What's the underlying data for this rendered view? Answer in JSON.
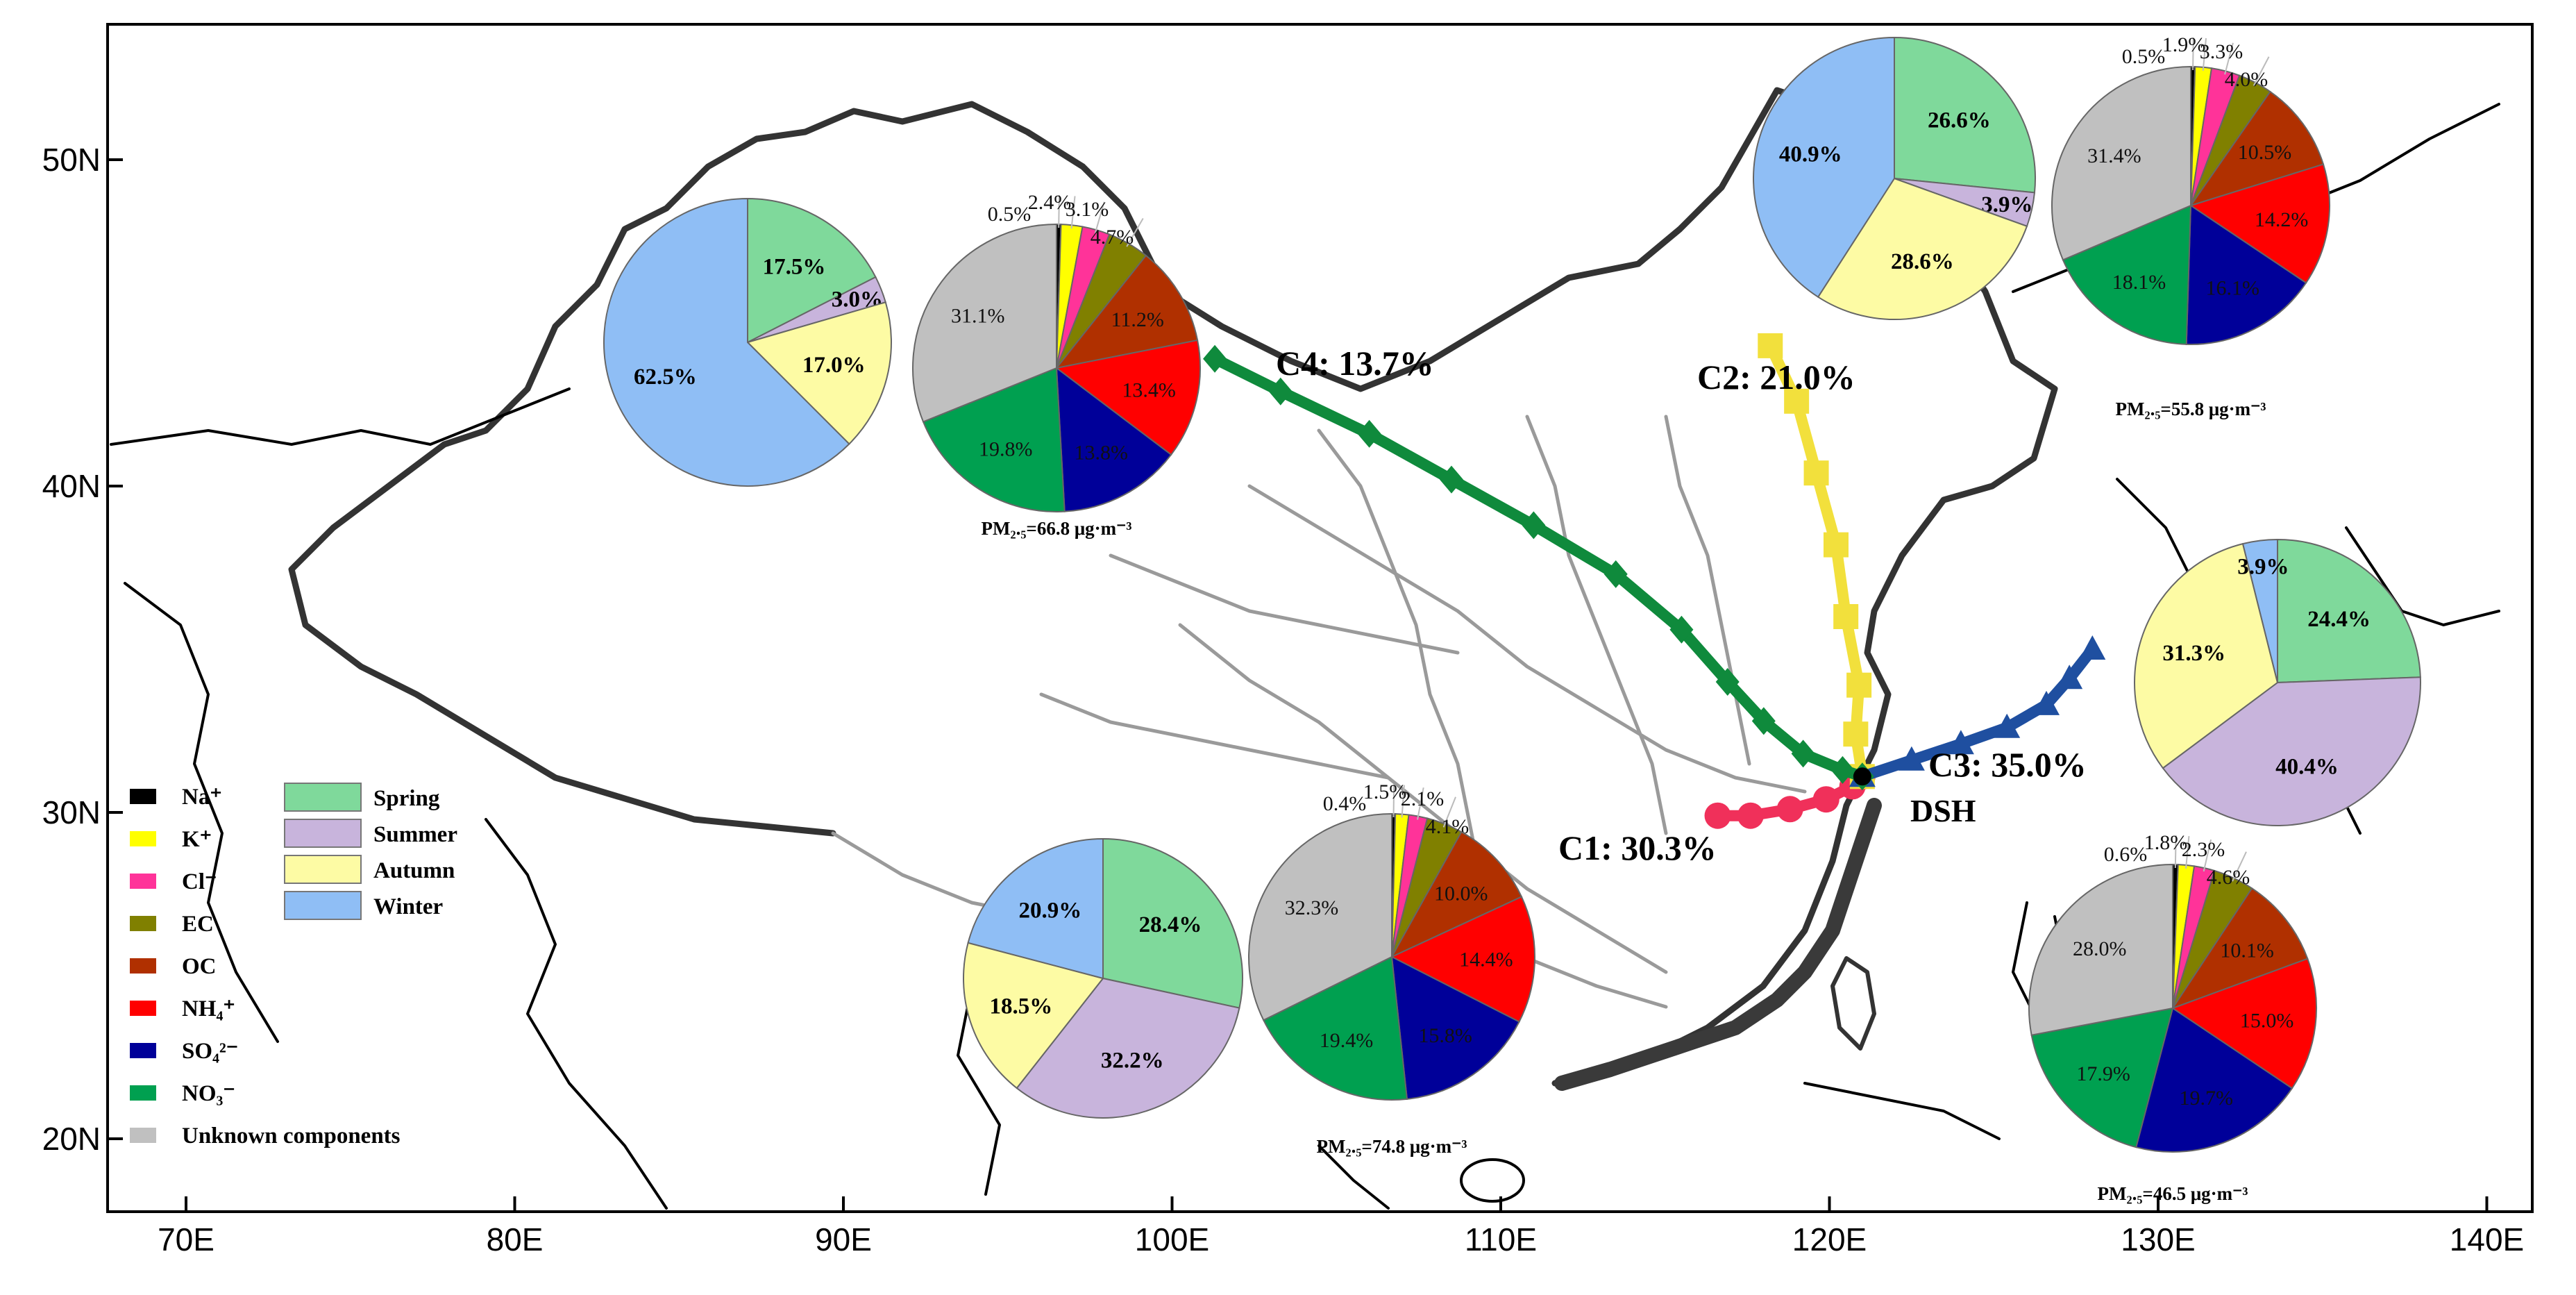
{
  "map": {
    "lat_ticks": [
      {
        "lat": 50,
        "label": "50N"
      },
      {
        "lat": 40,
        "label": "40N"
      },
      {
        "lat": 30,
        "label": "30N"
      },
      {
        "lat": 20,
        "label": "20N"
      }
    ],
    "lon_ticks": [
      {
        "lon": 70,
        "label": "70E"
      },
      {
        "lon": 80,
        "label": "80E"
      },
      {
        "lon": 90,
        "label": "90E"
      },
      {
        "lon": 100,
        "label": "100E"
      },
      {
        "lon": 110,
        "label": "110E"
      },
      {
        "lon": 120,
        "label": "120E"
      },
      {
        "lon": 130,
        "label": "130E"
      },
      {
        "lon": 140,
        "label": "140E"
      }
    ],
    "site": {
      "label": "DSH",
      "lon": 121.0,
      "lat": 31.1
    }
  },
  "trajectories": [
    {
      "label": "C1: 30.3%",
      "color": "#f0305a",
      "marker": "circle",
      "points": [
        [
          116.6,
          29.9
        ],
        [
          117.6,
          29.9
        ],
        [
          118.8,
          30.1
        ],
        [
          119.9,
          30.4
        ],
        [
          120.7,
          30.8
        ],
        [
          121.0,
          31.1
        ]
      ]
    },
    {
      "label": "C2: 21.0%",
      "color": "#f2e03c",
      "marker": "square",
      "points": [
        [
          118.2,
          44.3
        ],
        [
          119.0,
          42.6
        ],
        [
          119.6,
          40.4
        ],
        [
          120.2,
          38.2
        ],
        [
          120.5,
          36.0
        ],
        [
          120.9,
          33.9
        ],
        [
          120.8,
          32.4
        ],
        [
          121.0,
          31.1
        ]
      ]
    },
    {
      "label": "C3: 35.0%",
      "color": "#1f4fa0",
      "marker": "triangle",
      "points": [
        [
          121.0,
          31.1
        ],
        [
          122.5,
          31.6
        ],
        [
          124.0,
          32.1
        ],
        [
          125.4,
          32.6
        ],
        [
          126.6,
          33.3
        ],
        [
          127.3,
          34.1
        ],
        [
          128.0,
          35.0
        ]
      ]
    },
    {
      "label": "C4: 13.7%",
      "color": "#0f8a3c",
      "marker": "diamond",
      "points": [
        [
          101.3,
          43.9
        ],
        [
          103.3,
          42.9
        ],
        [
          106.0,
          41.6
        ],
        [
          108.5,
          40.2
        ],
        [
          111.0,
          38.8
        ],
        [
          113.5,
          37.3
        ],
        [
          115.5,
          35.6
        ],
        [
          116.9,
          34.0
        ],
        [
          118.0,
          32.8
        ],
        [
          119.2,
          31.8
        ],
        [
          120.4,
          31.3
        ],
        [
          121.0,
          31.1
        ]
      ]
    }
  ],
  "legend": {
    "components": [
      {
        "label": "Na⁺",
        "color": "#000000"
      },
      {
        "label": "K⁺",
        "color": "#ffff00"
      },
      {
        "label": "Cl⁻",
        "color": "#ff3399"
      },
      {
        "label": "EC",
        "color": "#808000"
      },
      {
        "label": "OC",
        "color": "#b03000"
      },
      {
        "label": "NH₄⁺",
        "color": "#ff0000"
      },
      {
        "label": "SO₄²⁻",
        "color": "#000099"
      },
      {
        "label": "NO₃⁻",
        "color": "#00a050"
      },
      {
        "label": "Unknown components",
        "color": "#c0c0c0"
      }
    ],
    "seasons": [
      {
        "label": "Spring",
        "color": "#7fd99b"
      },
      {
        "label": "Summer",
        "color": "#c8b4dc"
      },
      {
        "label": "Autumn",
        "color": "#fdfba4"
      },
      {
        "label": "Winter",
        "color": "#8fbef5"
      }
    ]
  },
  "chart_data": [
    {
      "type": "pie",
      "cluster": "C4",
      "kind": "season",
      "labels": [
        "Spring",
        "Summer",
        "Autumn",
        "Winter"
      ],
      "values": [
        17.5,
        3.0,
        17.0,
        62.5
      ],
      "value_labels": [
        "17.5%",
        "3.0%",
        "17.0%",
        "62.5%"
      ]
    },
    {
      "type": "pie",
      "cluster": "C4",
      "kind": "components",
      "labels": [
        "Na⁺",
        "K⁺",
        "Cl⁻",
        "EC",
        "OC",
        "NH₄⁺",
        "SO₄²⁻",
        "NO₃⁻",
        "Unknown components"
      ],
      "values": [
        0.5,
        2.4,
        3.1,
        4.7,
        11.2,
        13.4,
        13.8,
        19.8,
        31.1
      ],
      "value_labels": [
        "0.5%",
        "2.4%",
        "3.1%",
        "4.7%",
        "11.2%",
        "13.4%",
        "13.8%",
        "19.8%",
        "31.1%"
      ],
      "pm_label": "PM₂.₅=66.8 μg·m⁻³"
    },
    {
      "type": "pie",
      "cluster": "C2",
      "kind": "season",
      "labels": [
        "Spring",
        "Summer",
        "Autumn",
        "Winter"
      ],
      "values": [
        26.6,
        3.9,
        28.6,
        40.9
      ],
      "value_labels": [
        "26.6%",
        "3.9%",
        "28.6%",
        "40.9%"
      ]
    },
    {
      "type": "pie",
      "cluster": "C2",
      "kind": "components",
      "labels": [
        "Na⁺",
        "K⁺",
        "Cl⁻",
        "EC",
        "OC",
        "NH₄⁺",
        "SO₄²⁻",
        "NO₃⁻",
        "Unknown components"
      ],
      "values": [
        0.5,
        1.9,
        3.3,
        4.0,
        10.5,
        14.2,
        16.1,
        18.1,
        31.4
      ],
      "value_labels": [
        "0.5%",
        "1.9%",
        "3.3%",
        "4.0%",
        "10.5%",
        "14.2%",
        "16.1%",
        "18.1%",
        "31.4%"
      ],
      "pm_label": "PM₂.₅=55.8 μg·m⁻³"
    },
    {
      "type": "pie",
      "cluster": "C3",
      "kind": "season",
      "labels": [
        "Spring",
        "Summer",
        "Autumn",
        "Winter"
      ],
      "values": [
        24.4,
        40.4,
        31.3,
        3.9
      ],
      "value_labels": [
        "24.4%",
        "40.4%",
        "31.3%",
        "3.9%"
      ]
    },
    {
      "type": "pie",
      "cluster": "C3",
      "kind": "components",
      "labels": [
        "Na⁺",
        "K⁺",
        "Cl⁻",
        "EC",
        "OC",
        "NH₄⁺",
        "SO₄²⁻",
        "NO₃⁻",
        "Unknown components"
      ],
      "values": [
        0.6,
        1.8,
        2.3,
        4.6,
        10.1,
        15.0,
        19.7,
        17.9,
        28.0
      ],
      "value_labels": [
        "0.6%",
        "1.8%",
        "2.3%",
        "4.6%",
        "10.1%",
        "15.0%",
        "19.7%",
        "17.9%",
        "28.0%"
      ],
      "pm_label": "PM₂.₅=46.5 μg·m⁻³"
    },
    {
      "type": "pie",
      "cluster": "C1",
      "kind": "season",
      "labels": [
        "Spring",
        "Summer",
        "Autumn",
        "Winter"
      ],
      "values": [
        28.4,
        32.2,
        18.5,
        20.9
      ],
      "value_labels": [
        "28.4%",
        "32.2%",
        "18.5%",
        "20.9%"
      ]
    },
    {
      "type": "pie",
      "cluster": "C1",
      "kind": "components",
      "labels": [
        "Na⁺",
        "K⁺",
        "Cl⁻",
        "EC",
        "OC",
        "NH₄⁺",
        "SO₄²⁻",
        "NO₃⁻",
        "Unknown components"
      ],
      "values": [
        0.4,
        1.5,
        2.1,
        4.1,
        10.0,
        14.4,
        15.8,
        19.4,
        32.3
      ],
      "value_labels": [
        "0.4%",
        "1.5%",
        "2.1%",
        "4.1%",
        "10.0%",
        "14.4%",
        "15.8%",
        "19.4%",
        "32.3%"
      ],
      "pm_label": "PM₂.₅=74.8 μg·m⁻³"
    }
  ]
}
